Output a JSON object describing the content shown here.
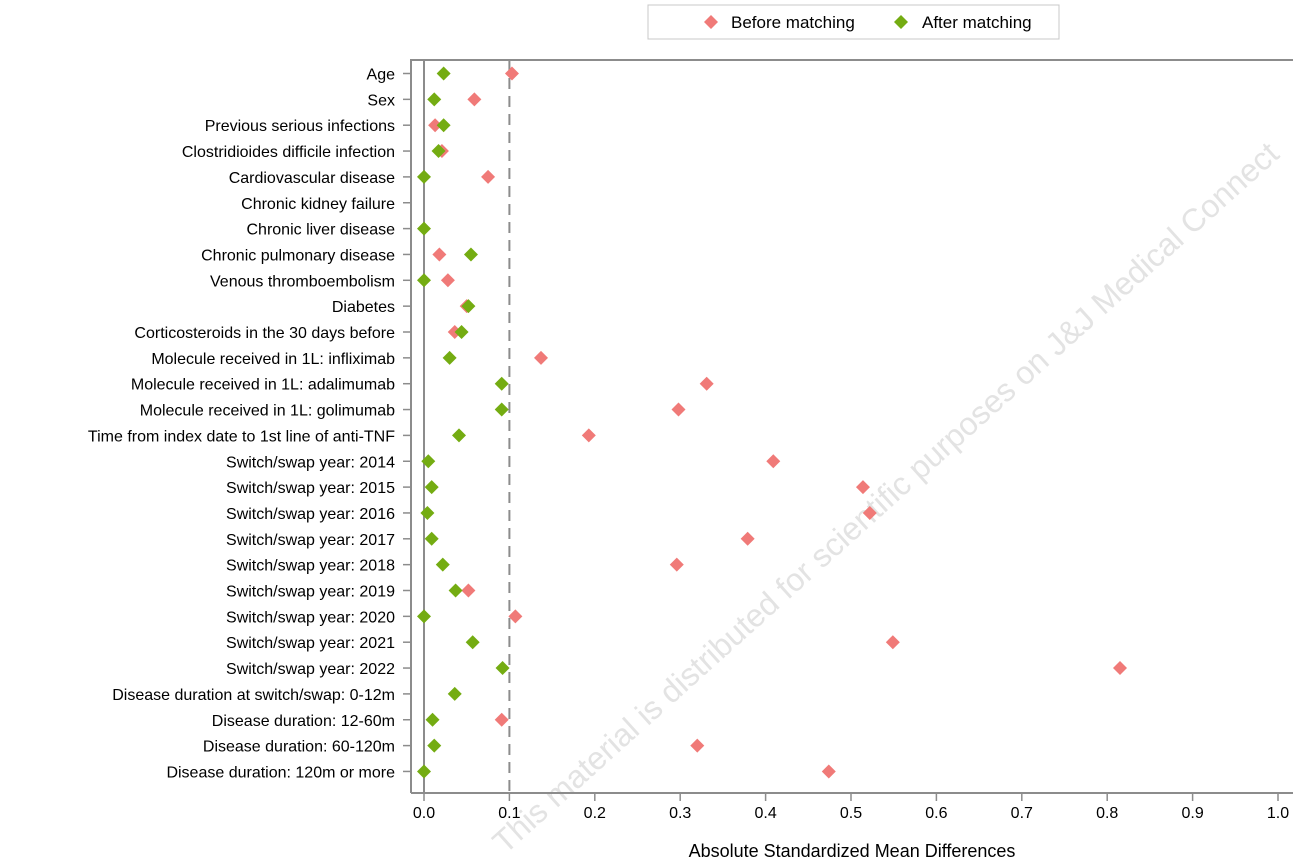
{
  "chart_data": {
    "type": "scatter",
    "orientation": "horizontal",
    "xlabel": "Absolute Standardized Mean Differences",
    "xlim": [
      0,
      1.0
    ],
    "xticks": [
      "0.0",
      "0.1",
      "0.2",
      "0.3",
      "0.4",
      "0.5",
      "0.6",
      "0.7",
      "0.8",
      "0.9",
      "1.0"
    ],
    "reference_lines": [
      0,
      0.1
    ],
    "legend_position": "top-right",
    "categories": [
      "Age",
      "Sex",
      "Previous serious infections",
      "Clostridioides difficile infection",
      "Cardiovascular disease",
      "Chronic kidney failure",
      "Chronic liver disease",
      "Chronic pulmonary disease",
      "Venous thromboembolism",
      "Diabetes",
      "Corticosteroids in the 30 days before",
      "Molecule received in 1L: infliximab",
      "Molecule received in 1L: adalimumab",
      "Molecule received in 1L: golimumab",
      "Time from index date to 1st line of anti-TNF",
      "Switch/swap year: 2014",
      "Switch/swap year: 2015",
      "Switch/swap year: 2016",
      "Switch/swap year: 2017",
      "Switch/swap year: 2018",
      "Switch/swap year: 2019",
      "Switch/swap year: 2020",
      "Switch/swap year: 2021",
      "Switch/swap year: 2022",
      "Disease duration at switch/swap: 0-12m",
      "Disease duration: 12-60m",
      "Disease duration: 60-120m",
      "Disease duration: 120m or more"
    ],
    "series": [
      {
        "name": "Before matching",
        "color": "#f07a78",
        "marker": "diamond",
        "values": [
          0.103,
          0.059,
          0.013,
          0.021,
          0.075,
          null,
          null,
          0.018,
          0.028,
          0.05,
          0.036,
          0.137,
          0.331,
          0.298,
          0.193,
          0.409,
          0.514,
          0.522,
          0.379,
          0.296,
          0.052,
          0.107,
          0.549,
          0.815,
          null,
          0.091,
          0.32,
          0.474
        ]
      },
      {
        "name": "After matching",
        "color": "#74ac12",
        "marker": "diamond",
        "values": [
          0.023,
          0.012,
          0.023,
          0.017,
          0.0,
          null,
          0.0,
          0.055,
          0.0,
          0.052,
          0.044,
          0.03,
          0.091,
          0.091,
          0.041,
          0.005,
          0.009,
          0.004,
          0.009,
          0.022,
          0.037,
          0.0,
          0.057,
          0.092,
          0.036,
          0.01,
          0.012,
          0.0
        ]
      }
    ]
  },
  "watermark": "This material is distributed for scientific purposes on J&J Medical Connect"
}
